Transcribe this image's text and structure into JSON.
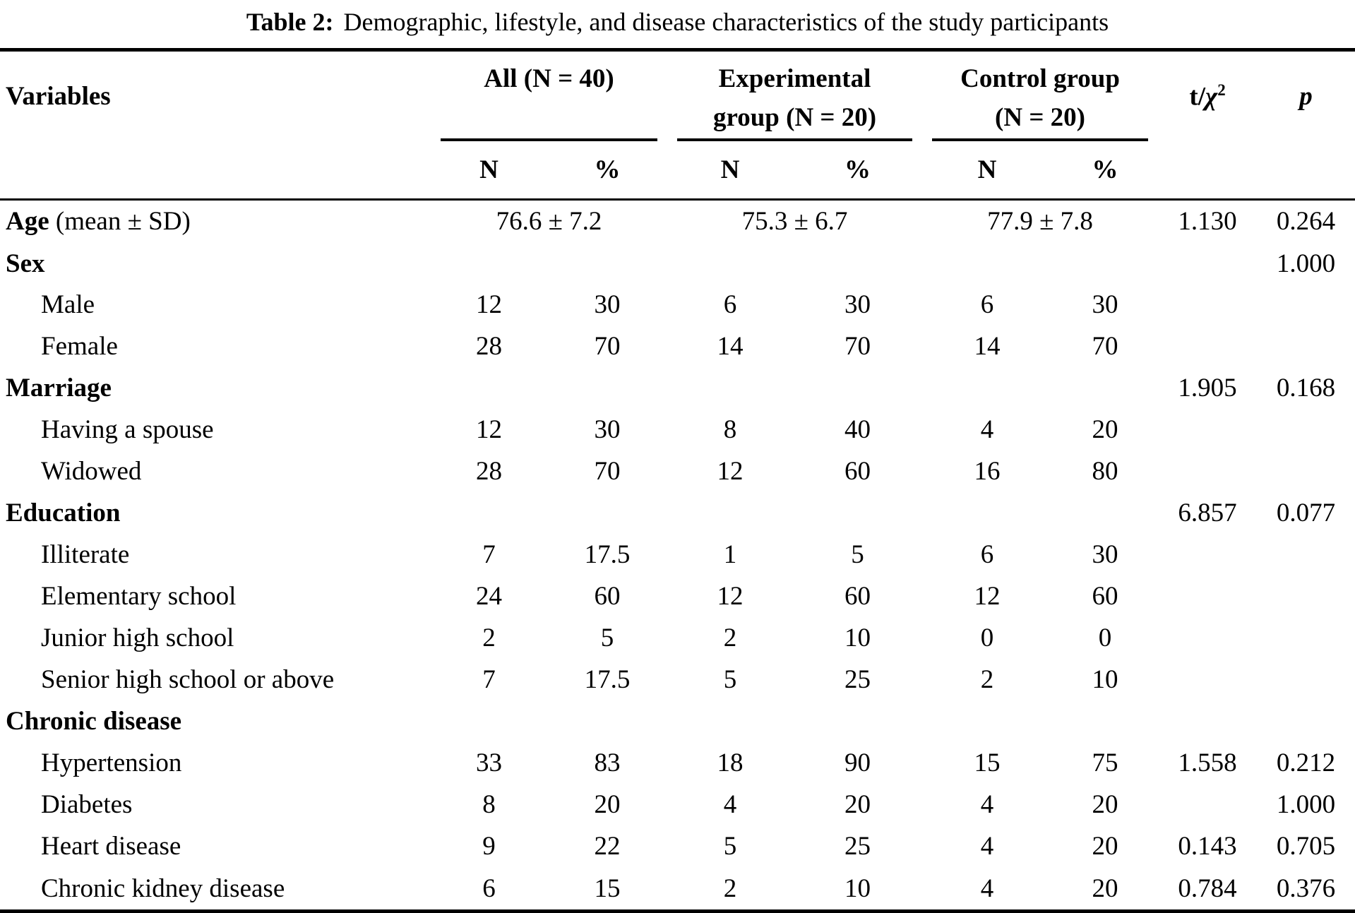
{
  "title": {
    "prefix": "Table 2:",
    "text": "Demographic, lifestyle, and disease characteristics of the study participants"
  },
  "header": {
    "variables": "Variables",
    "groups": [
      {
        "lines": [
          "All (N = 40)"
        ]
      },
      {
        "lines": [
          "Experimental",
          "group (N = 20)"
        ]
      },
      {
        "lines": [
          "Control group",
          "(N = 20)"
        ]
      }
    ],
    "stat": {
      "prefix": "t/",
      "chi": "χ",
      "sup": "2"
    },
    "p": "p",
    "subheaders": [
      "N",
      "%",
      "N",
      "%",
      "N",
      "%"
    ]
  },
  "rows": [
    {
      "type": "span",
      "label_bold": "Age",
      "label_rest": " (mean ± SD)",
      "values": [
        "76.6 ± 7.2",
        "75.3 ± 6.7",
        "77.9 ± 7.8"
      ],
      "t": "1.130",
      "p": "0.264"
    },
    {
      "type": "category",
      "label": "Sex",
      "t": "",
      "p": "1.000"
    },
    {
      "type": "item",
      "label": "Male",
      "values": [
        "12",
        "30",
        "6",
        "30",
        "6",
        "30"
      ],
      "t": "",
      "p": ""
    },
    {
      "type": "item",
      "label": "Female",
      "values": [
        "28",
        "70",
        "14",
        "70",
        "14",
        "70"
      ],
      "t": "",
      "p": ""
    },
    {
      "type": "category",
      "label": "Marriage",
      "t": "1.905",
      "p": "0.168"
    },
    {
      "type": "item",
      "label": "Having a spouse",
      "values": [
        "12",
        "30",
        "8",
        "40",
        "4",
        "20"
      ],
      "t": "",
      "p": ""
    },
    {
      "type": "item",
      "label": "Widowed",
      "values": [
        "28",
        "70",
        "12",
        "60",
        "16",
        "80"
      ],
      "t": "",
      "p": ""
    },
    {
      "type": "category",
      "label": "Education",
      "t": "6.857",
      "p": "0.077"
    },
    {
      "type": "item",
      "label": "Illiterate",
      "values": [
        "7",
        "17.5",
        "1",
        "5",
        "6",
        "30"
      ],
      "t": "",
      "p": ""
    },
    {
      "type": "item",
      "label": "Elementary school",
      "values": [
        "24",
        "60",
        "12",
        "60",
        "12",
        "60"
      ],
      "t": "",
      "p": ""
    },
    {
      "type": "item",
      "label": "Junior high school",
      "values": [
        "2",
        "5",
        "2",
        "10",
        "0",
        "0"
      ],
      "t": "",
      "p": ""
    },
    {
      "type": "item",
      "label": "Senior high school or above",
      "values": [
        "7",
        "17.5",
        "5",
        "25",
        "2",
        "10"
      ],
      "t": "",
      "p": ""
    },
    {
      "type": "category",
      "label": "Chronic disease",
      "t": "",
      "p": ""
    },
    {
      "type": "item",
      "label": "Hypertension",
      "values": [
        "33",
        "83",
        "18",
        "90",
        "15",
        "75"
      ],
      "t": "1.558",
      "p": "0.212"
    },
    {
      "type": "item",
      "label": "Diabetes",
      "values": [
        "8",
        "20",
        "4",
        "20",
        "4",
        "20"
      ],
      "t": "",
      "p": "1.000"
    },
    {
      "type": "item",
      "label": "Heart disease",
      "values": [
        "9",
        "22",
        "5",
        "25",
        "4",
        "20"
      ],
      "t": "0.143",
      "p": "0.705"
    },
    {
      "type": "item",
      "label": "Chronic kidney disease",
      "values": [
        "6",
        "15",
        "2",
        "10",
        "4",
        "20"
      ],
      "t": "0.784",
      "p": "0.376"
    }
  ]
}
